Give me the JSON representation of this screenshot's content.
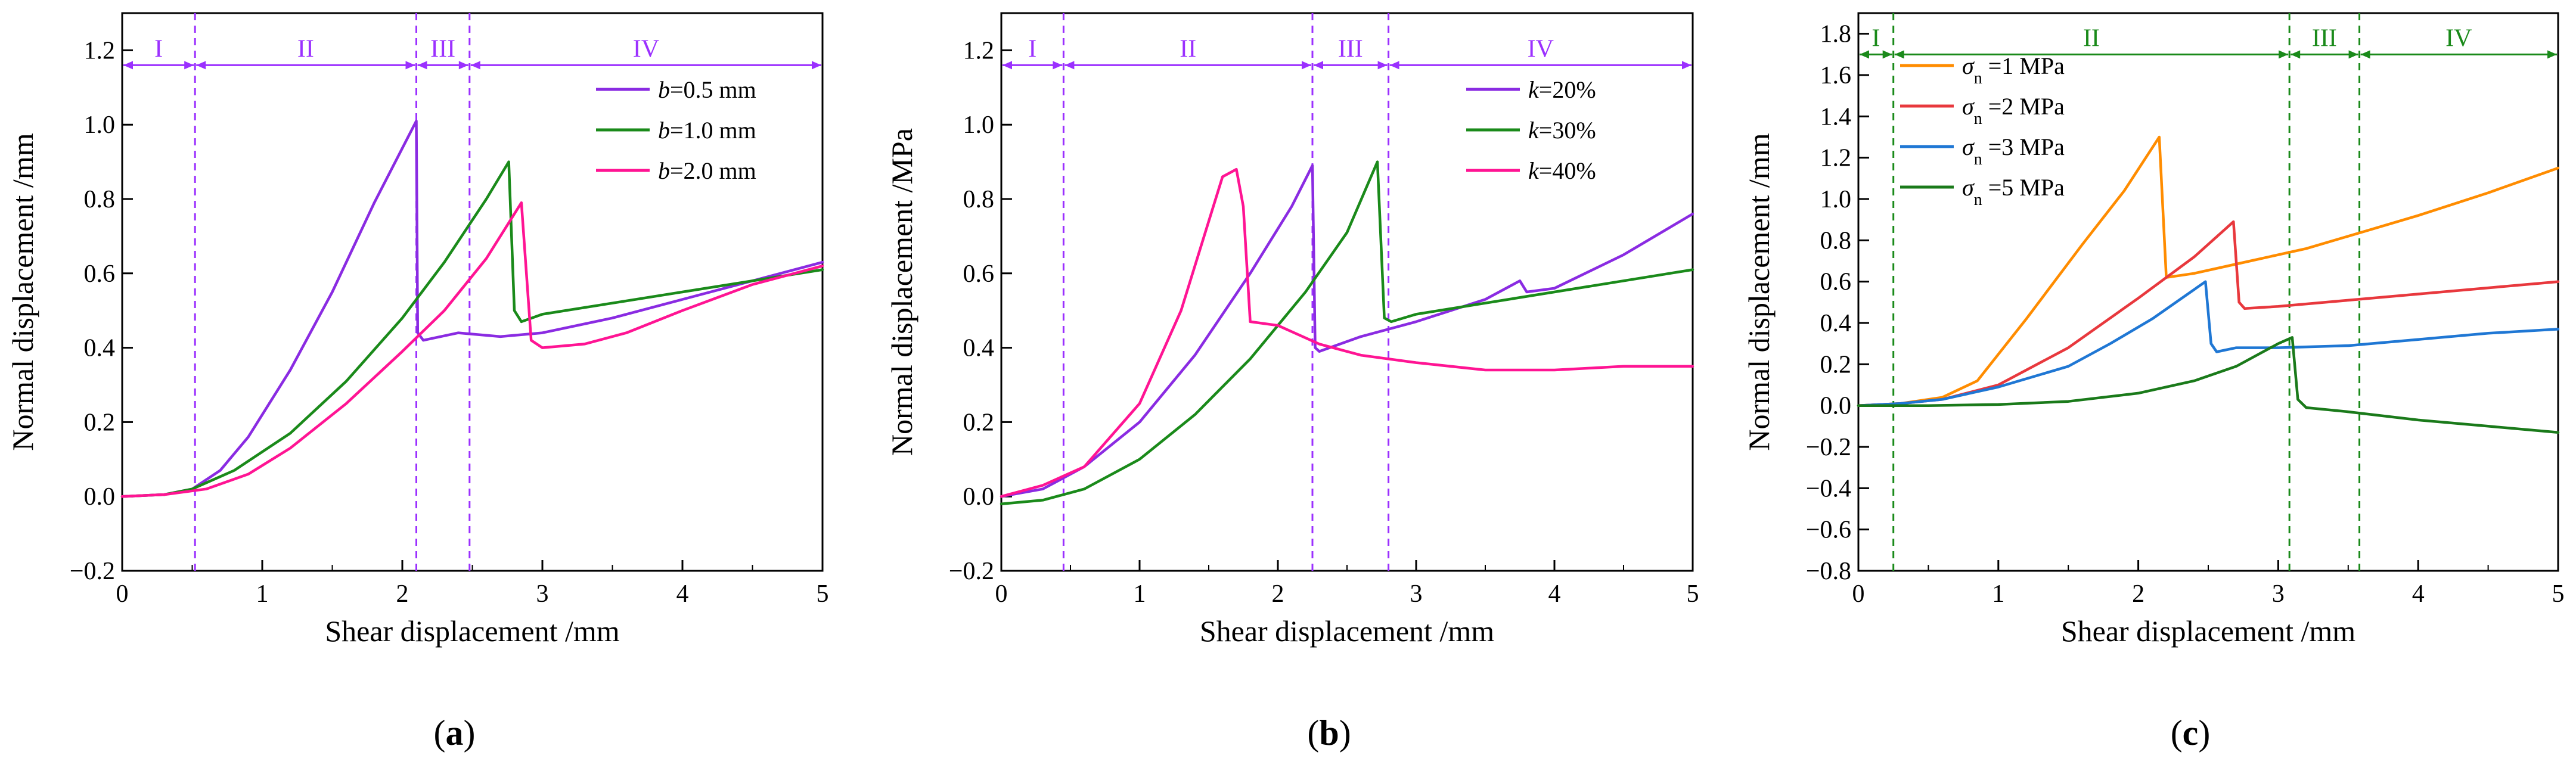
{
  "chart_data": [
    {
      "type": "line",
      "panel_label": "a",
      "xlabel": "Shear displacement /mm",
      "ylabel": "Normal displacement /mm",
      "xlim": [
        0,
        5
      ],
      "ylim": [
        -0.2,
        1.3
      ],
      "xticks": [
        0,
        1,
        2,
        3,
        4,
        5
      ],
      "yticks": [
        -0.2,
        0.0,
        0.2,
        0.4,
        0.6,
        0.8,
        1.0,
        1.2
      ],
      "ytick_format": 1,
      "stage_color": "#9b30ff",
      "stage_y": 1.16,
      "stage_bounds": [
        0,
        0.52,
        2.1,
        2.48,
        5
      ],
      "stages": [
        "I",
        "II",
        "III",
        "IV"
      ],
      "legend": {
        "position": "top-right"
      },
      "series": [
        {
          "name": "=0.5 mm",
          "var": "b",
          "color": "#8a2be2",
          "points": [
            [
              0,
              0
            ],
            [
              0.3,
              0.005
            ],
            [
              0.5,
              0.02
            ],
            [
              0.7,
              0.07
            ],
            [
              0.9,
              0.16
            ],
            [
              1.2,
              0.34
            ],
            [
              1.5,
              0.55
            ],
            [
              1.8,
              0.79
            ],
            [
              2.1,
              1.01
            ],
            [
              2.11,
              0.44
            ],
            [
              2.15,
              0.42
            ],
            [
              2.4,
              0.44
            ],
            [
              2.7,
              0.43
            ],
            [
              3.0,
              0.44
            ],
            [
              3.5,
              0.48
            ],
            [
              4.0,
              0.53
            ],
            [
              4.5,
              0.58
            ],
            [
              5.0,
              0.63
            ]
          ]
        },
        {
          "name": "=1.0 mm",
          "var": "b",
          "color": "#1a8a1a",
          "points": [
            [
              0,
              0
            ],
            [
              0.3,
              0.005
            ],
            [
              0.5,
              0.02
            ],
            [
              0.8,
              0.07
            ],
            [
              1.2,
              0.17
            ],
            [
              1.6,
              0.31
            ],
            [
              2.0,
              0.48
            ],
            [
              2.3,
              0.63
            ],
            [
              2.6,
              0.8
            ],
            [
              2.76,
              0.9
            ],
            [
              2.8,
              0.5
            ],
            [
              2.85,
              0.47
            ],
            [
              3.0,
              0.49
            ],
            [
              3.5,
              0.52
            ],
            [
              4.0,
              0.55
            ],
            [
              4.5,
              0.58
            ],
            [
              5.0,
              0.61
            ]
          ]
        },
        {
          "name": "=2.0 mm",
          "var": "b",
          "color": "#ff1493",
          "points": [
            [
              0,
              0
            ],
            [
              0.3,
              0.005
            ],
            [
              0.6,
              0.02
            ],
            [
              0.9,
              0.06
            ],
            [
              1.2,
              0.13
            ],
            [
              1.6,
              0.25
            ],
            [
              2.0,
              0.39
            ],
            [
              2.3,
              0.5
            ],
            [
              2.6,
              0.64
            ],
            [
              2.85,
              0.79
            ],
            [
              2.92,
              0.42
            ],
            [
              3.0,
              0.4
            ],
            [
              3.3,
              0.41
            ],
            [
              3.6,
              0.44
            ],
            [
              4.0,
              0.5
            ],
            [
              4.5,
              0.57
            ],
            [
              5.0,
              0.62
            ]
          ]
        }
      ]
    },
    {
      "type": "line",
      "panel_label": "b",
      "xlabel": "Shear displacement /mm",
      "ylabel": "Normal displacement /MPa",
      "xlim": [
        0,
        5
      ],
      "ylim": [
        -0.2,
        1.3
      ],
      "xticks": [
        0,
        1,
        2,
        3,
        4,
        5
      ],
      "yticks": [
        -0.2,
        0.0,
        0.2,
        0.4,
        0.6,
        0.8,
        1.0,
        1.2
      ],
      "ytick_format": 1,
      "stage_color": "#9b30ff",
      "stage_y": 1.16,
      "stage_bounds": [
        0,
        0.45,
        2.25,
        2.8,
        5
      ],
      "stages": [
        "I",
        "II",
        "III",
        "IV"
      ],
      "legend": {
        "position": "top-right"
      },
      "series": [
        {
          "name": "=20%",
          "var": "k",
          "color": "#8a2be2",
          "points": [
            [
              0,
              0
            ],
            [
              0.3,
              0.02
            ],
            [
              0.6,
              0.08
            ],
            [
              1.0,
              0.2
            ],
            [
              1.4,
              0.38
            ],
            [
              1.8,
              0.6
            ],
            [
              2.1,
              0.78
            ],
            [
              2.25,
              0.89
            ],
            [
              2.27,
              0.4
            ],
            [
              2.3,
              0.39
            ],
            [
              2.6,
              0.43
            ],
            [
              3.0,
              0.47
            ],
            [
              3.5,
              0.53
            ],
            [
              3.75,
              0.58
            ],
            [
              3.8,
              0.55
            ],
            [
              4.0,
              0.56
            ],
            [
              4.5,
              0.65
            ],
            [
              5.0,
              0.76
            ]
          ]
        },
        {
          "name": "=30%",
          "var": "k",
          "color": "#1a8a1a",
          "points": [
            [
              0,
              -0.02
            ],
            [
              0.3,
              -0.01
            ],
            [
              0.6,
              0.02
            ],
            [
              1.0,
              0.1
            ],
            [
              1.4,
              0.22
            ],
            [
              1.8,
              0.37
            ],
            [
              2.2,
              0.55
            ],
            [
              2.5,
              0.71
            ],
            [
              2.72,
              0.9
            ],
            [
              2.77,
              0.48
            ],
            [
              2.82,
              0.47
            ],
            [
              3.0,
              0.49
            ],
            [
              3.5,
              0.52
            ],
            [
              4.0,
              0.55
            ],
            [
              4.5,
              0.58
            ],
            [
              5.0,
              0.61
            ]
          ]
        },
        {
          "name": "=40%",
          "var": "k",
          "color": "#ff1493",
          "points": [
            [
              0,
              0
            ],
            [
              0.3,
              0.03
            ],
            [
              0.6,
              0.08
            ],
            [
              1.0,
              0.25
            ],
            [
              1.3,
              0.5
            ],
            [
              1.5,
              0.74
            ],
            [
              1.6,
              0.86
            ],
            [
              1.7,
              0.88
            ],
            [
              1.75,
              0.78
            ],
            [
              1.8,
              0.47
            ],
            [
              2.0,
              0.46
            ],
            [
              2.3,
              0.41
            ],
            [
              2.6,
              0.38
            ],
            [
              3.0,
              0.36
            ],
            [
              3.5,
              0.34
            ],
            [
              4.0,
              0.34
            ],
            [
              4.5,
              0.35
            ],
            [
              5.0,
              0.35
            ]
          ]
        }
      ]
    },
    {
      "type": "line",
      "panel_label": "c",
      "xlabel": "Shear displacement /mm",
      "ylabel": "Normal displacement /mm",
      "xlim": [
        0,
        5
      ],
      "ylim": [
        -0.8,
        1.9
      ],
      "xticks": [
        0,
        1,
        2,
        3,
        4,
        5
      ],
      "yticks": [
        -0.8,
        -0.6,
        -0.4,
        -0.2,
        0.0,
        0.2,
        0.4,
        0.6,
        0.8,
        1.0,
        1.2,
        1.4,
        1.6,
        1.8
      ],
      "ytick_format": 1,
      "stage_color": "#1a8a1a",
      "stage_y": 1.7,
      "stage_bounds": [
        0,
        0.25,
        3.08,
        3.58,
        5
      ],
      "stages": [
        "I",
        "II",
        "III",
        "IV"
      ],
      "legend": {
        "position": "top-left"
      },
      "series": [
        {
          "name": "=1 MPa",
          "var": "σn",
          "color": "#ff8c00",
          "points": [
            [
              0,
              0
            ],
            [
              0.3,
              0.01
            ],
            [
              0.6,
              0.04
            ],
            [
              0.85,
              0.12
            ],
            [
              1.2,
              0.42
            ],
            [
              1.6,
              0.78
            ],
            [
              1.9,
              1.04
            ],
            [
              2.15,
              1.3
            ],
            [
              2.2,
              0.62
            ],
            [
              2.4,
              0.64
            ],
            [
              2.8,
              0.7
            ],
            [
              3.2,
              0.76
            ],
            [
              3.6,
              0.84
            ],
            [
              4.0,
              0.92
            ],
            [
              4.5,
              1.03
            ],
            [
              5.0,
              1.15
            ]
          ]
        },
        {
          "name": "=2 MPa",
          "var": "σn",
          "color": "#e8383d",
          "points": [
            [
              0,
              0
            ],
            [
              0.3,
              0.01
            ],
            [
              0.6,
              0.03
            ],
            [
              1.0,
              0.1
            ],
            [
              1.5,
              0.28
            ],
            [
              2.0,
              0.52
            ],
            [
              2.4,
              0.72
            ],
            [
              2.68,
              0.89
            ],
            [
              2.72,
              0.5
            ],
            [
              2.76,
              0.47
            ],
            [
              3.0,
              0.48
            ],
            [
              3.5,
              0.51
            ],
            [
              4.0,
              0.54
            ],
            [
              4.5,
              0.57
            ],
            [
              5.0,
              0.6
            ]
          ]
        },
        {
          "name": "=3 MPa",
          "var": "σn",
          "color": "#1f77d4",
          "points": [
            [
              0,
              0
            ],
            [
              0.3,
              0.01
            ],
            [
              0.6,
              0.03
            ],
            [
              1.0,
              0.09
            ],
            [
              1.5,
              0.19
            ],
            [
              1.8,
              0.3
            ],
            [
              2.1,
              0.42
            ],
            [
              2.48,
              0.6
            ],
            [
              2.52,
              0.3
            ],
            [
              2.56,
              0.26
            ],
            [
              2.7,
              0.28
            ],
            [
              3.0,
              0.28
            ],
            [
              3.5,
              0.29
            ],
            [
              4.0,
              0.32
            ],
            [
              4.5,
              0.35
            ],
            [
              5.0,
              0.37
            ]
          ]
        },
        {
          "name": "=5 MPa",
          "var": "σn",
          "color": "#1a7a1a",
          "points": [
            [
              0,
              0
            ],
            [
              0.5,
              0.0
            ],
            [
              1.0,
              0.005
            ],
            [
              1.5,
              0.02
            ],
            [
              2.0,
              0.06
            ],
            [
              2.4,
              0.12
            ],
            [
              2.7,
              0.19
            ],
            [
              3.0,
              0.3
            ],
            [
              3.1,
              0.33
            ],
            [
              3.14,
              0.03
            ],
            [
              3.2,
              -0.01
            ],
            [
              3.5,
              -0.03
            ],
            [
              4.0,
              -0.07
            ],
            [
              4.5,
              -0.1
            ],
            [
              5.0,
              -0.13
            ]
          ]
        }
      ]
    }
  ]
}
